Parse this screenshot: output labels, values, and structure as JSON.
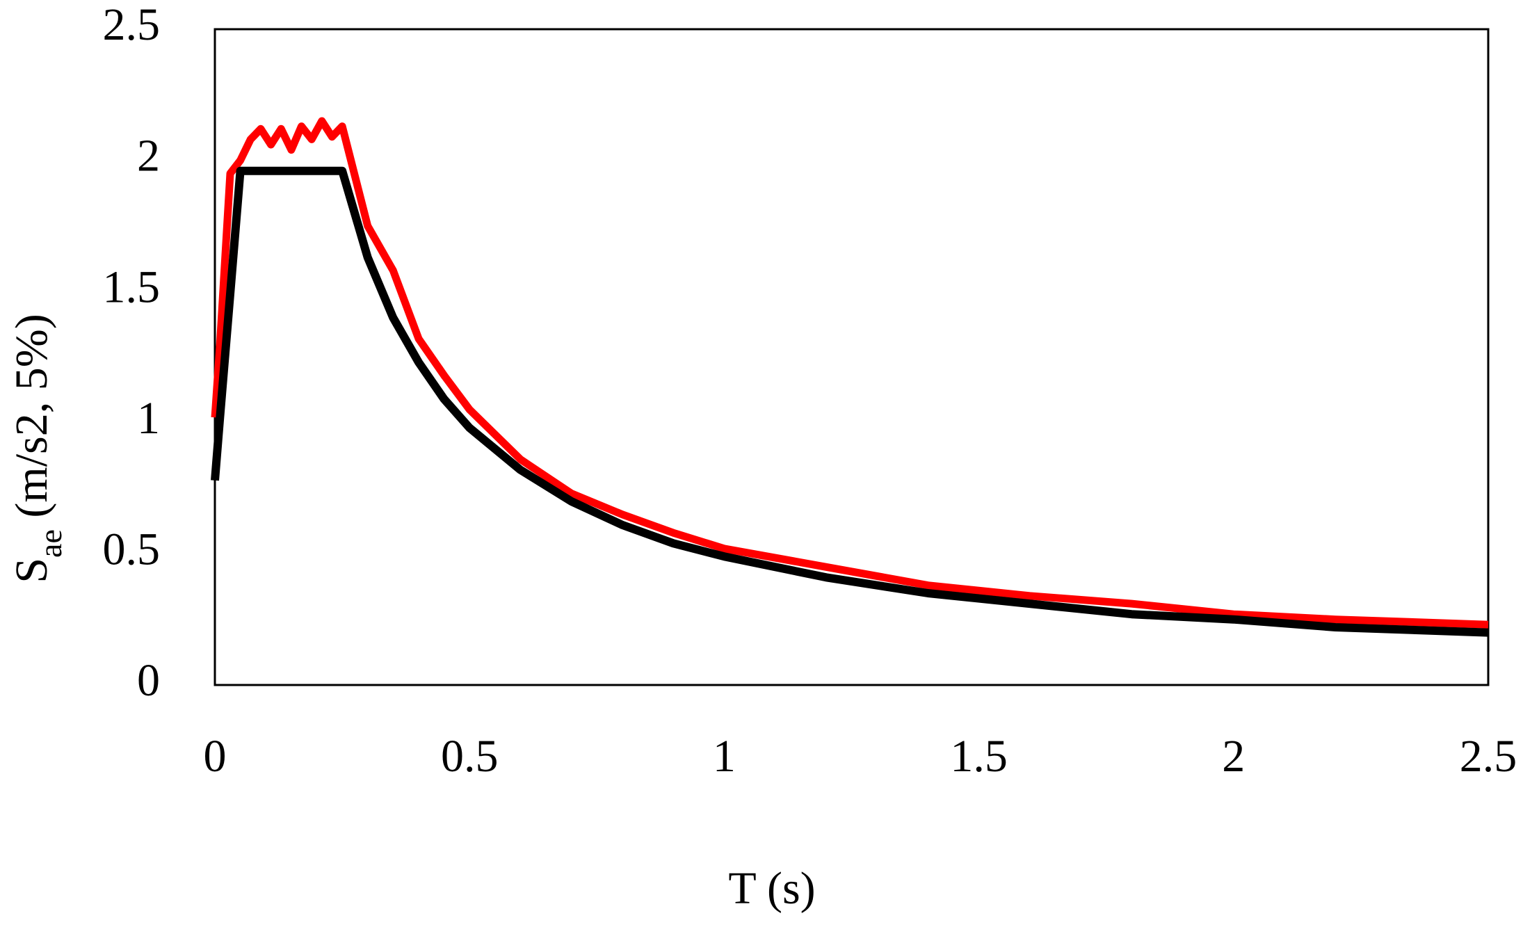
{
  "chart_data": {
    "type": "line",
    "xlabel": "T (s)",
    "ylabel": {
      "symbol": "S",
      "subscript": "ae",
      "rest": " (m/s2, 5%)"
    },
    "x": [
      0,
      0.01,
      0.03,
      0.05,
      0.07,
      0.09,
      0.11,
      0.13,
      0.15,
      0.17,
      0.19,
      0.21,
      0.23,
      0.25,
      0.3,
      0.35,
      0.4,
      0.45,
      0.5,
      0.6,
      0.7,
      0.8,
      0.9,
      1,
      1.2,
      1.4,
      1.6,
      1.8,
      2,
      2.2,
      2.5
    ],
    "series": [
      {
        "color": "#ff0000",
        "values": [
          1.02,
          1.3,
          1.95,
          2.0,
          2.08,
          2.12,
          2.06,
          2.12,
          2.04,
          2.13,
          2.08,
          2.15,
          2.09,
          2.13,
          1.75,
          1.58,
          1.32,
          1.18,
          1.05,
          0.86,
          0.73,
          0.65,
          0.58,
          0.52,
          0.45,
          0.38,
          0.34,
          0.31,
          0.27,
          0.25,
          0.23
        ]
      },
      {
        "color": "#000000",
        "values": [
          0.78,
          1.02,
          1.49,
          1.96,
          1.96,
          1.96,
          1.96,
          1.96,
          1.96,
          1.96,
          1.96,
          1.96,
          1.96,
          1.96,
          1.63,
          1.4,
          1.23,
          1.09,
          0.98,
          0.82,
          0.7,
          0.61,
          0.54,
          0.49,
          0.41,
          0.35,
          0.31,
          0.27,
          0.25,
          0.22,
          0.2
        ]
      }
    ],
    "xlim": [
      0,
      2.5
    ],
    "xticks": [
      0,
      0.5,
      1,
      1.5,
      2,
      2.5
    ],
    "ylim": [
      0,
      2.5
    ],
    "yticks": [
      0,
      0.5,
      1,
      1.5,
      2,
      2.5
    ],
    "grid": false
  }
}
